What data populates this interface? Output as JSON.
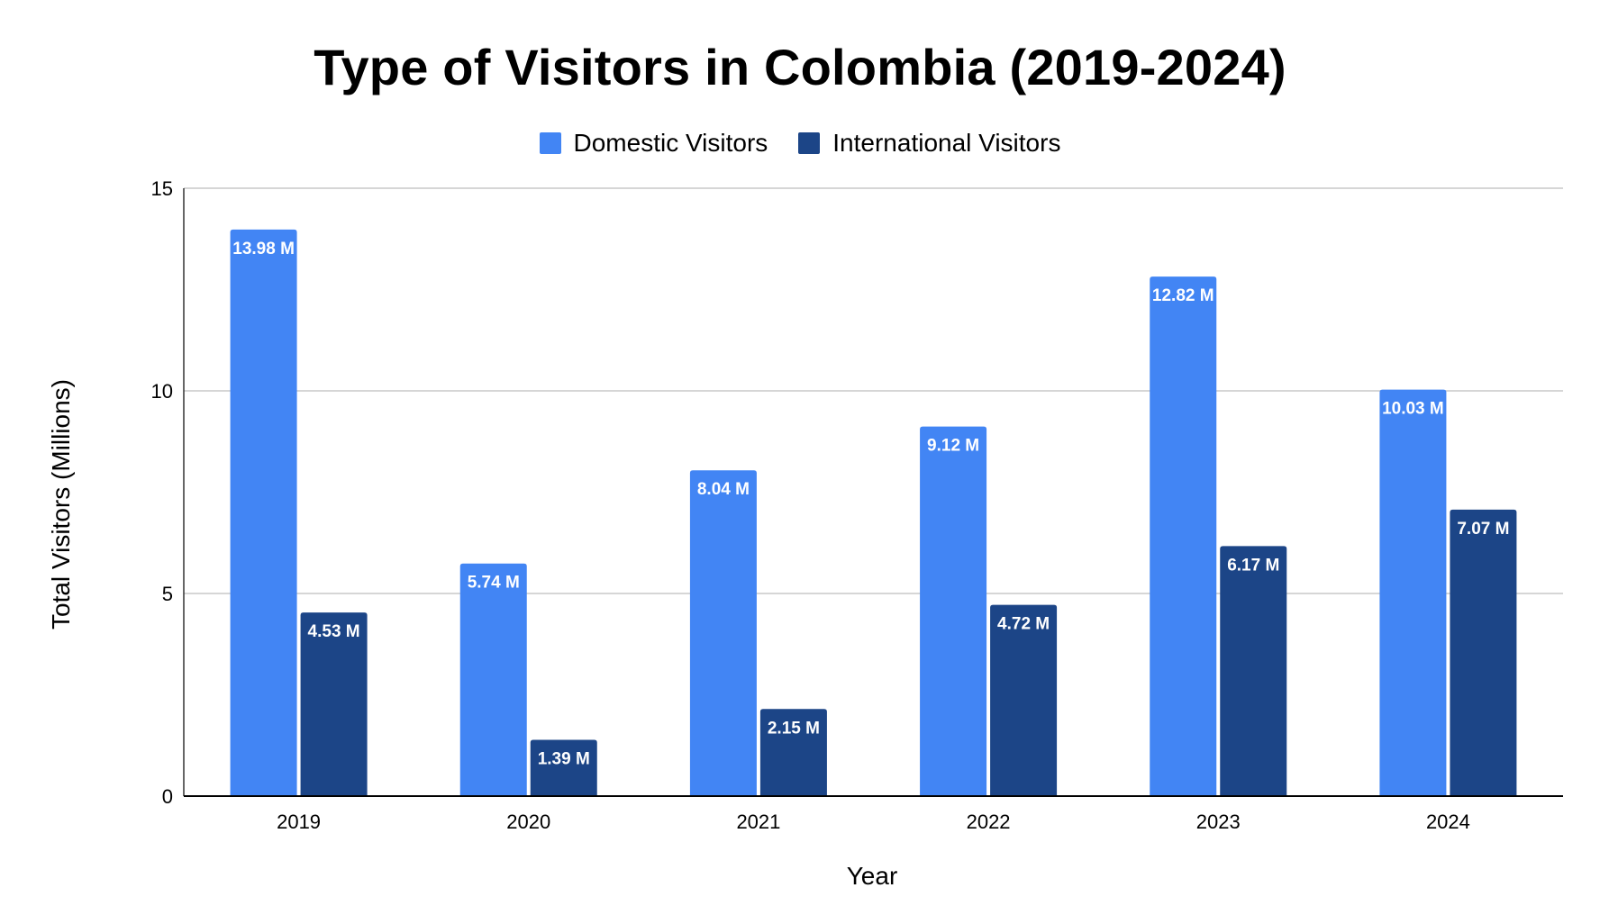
{
  "chart_data": {
    "type": "bar",
    "title": "Type of Visitors in Colombia (2019-2024)",
    "xlabel": "Year",
    "ylabel": "Total Visitors (Millions)",
    "categories": [
      "2019",
      "2020",
      "2021",
      "2022",
      "2023",
      "2024"
    ],
    "series": [
      {
        "name": "Domestic Visitors",
        "color": "#4285f4",
        "values": [
          13.98,
          5.74,
          8.04,
          9.12,
          12.82,
          10.03
        ],
        "labels": [
          "13.98 M",
          "5.74 M",
          "8.04 M",
          "9.12 M",
          "12.82 M",
          "10.03 M"
        ]
      },
      {
        "name": "International Visitors",
        "color": "#1c4587",
        "values": [
          4.53,
          1.39,
          2.15,
          4.72,
          6.17,
          7.07
        ],
        "labels": [
          "4.53 M",
          "1.39 M",
          "2.15 M",
          "4.72 M",
          "6.17 M",
          "7.07 M"
        ]
      }
    ],
    "ylim": [
      0,
      15
    ],
    "yticks": [
      0,
      5,
      10,
      15
    ],
    "grid": true,
    "legend_position": "top"
  }
}
